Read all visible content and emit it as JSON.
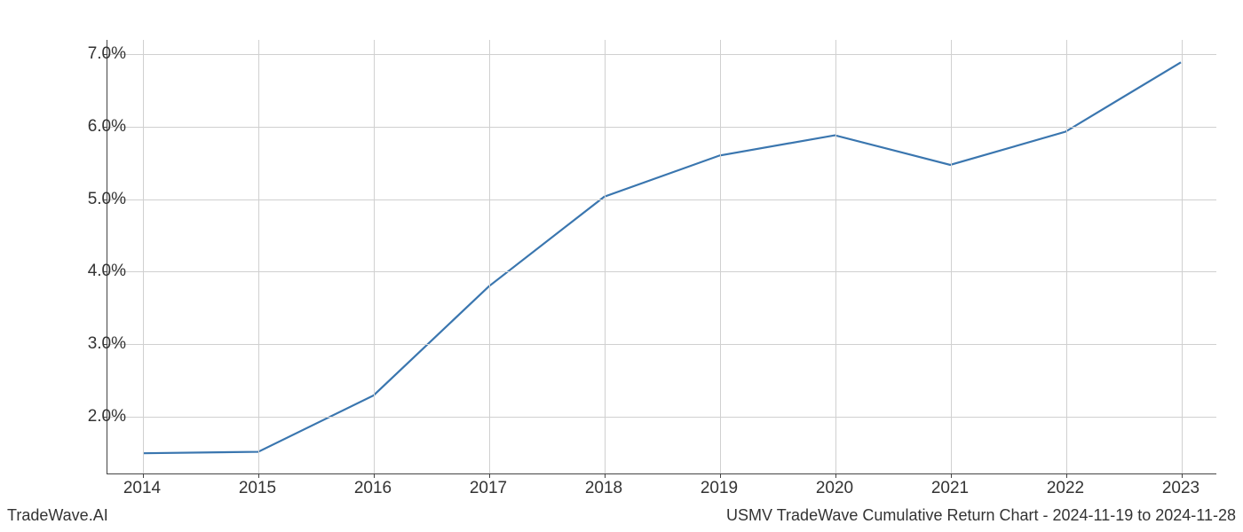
{
  "chart": {
    "type": "line",
    "x_categories": [
      "2014",
      "2015",
      "2016",
      "2017",
      "2018",
      "2019",
      "2020",
      "2021",
      "2022",
      "2023"
    ],
    "y_values": [
      1.48,
      1.5,
      2.28,
      3.79,
      5.03,
      5.6,
      5.88,
      5.47,
      5.93,
      6.89
    ],
    "y_ticks": [
      2.0,
      3.0,
      4.0,
      5.0,
      6.0,
      7.0
    ],
    "y_tick_labels": [
      "2.0%",
      "3.0%",
      "4.0%",
      "5.0%",
      "6.0%",
      "7.0%"
    ],
    "y_min": 1.2,
    "y_max": 7.2,
    "line_color": "#3a76af",
    "line_width": 2.2,
    "grid_color": "#d0d0d0",
    "background_color": "#ffffff",
    "axis_color": "#444444",
    "tick_fontsize": 19,
    "footer_fontsize": 18
  },
  "footer": {
    "left": "TradeWave.AI",
    "right": "USMV TradeWave Cumulative Return Chart - 2024-11-19 to 2024-11-28"
  }
}
